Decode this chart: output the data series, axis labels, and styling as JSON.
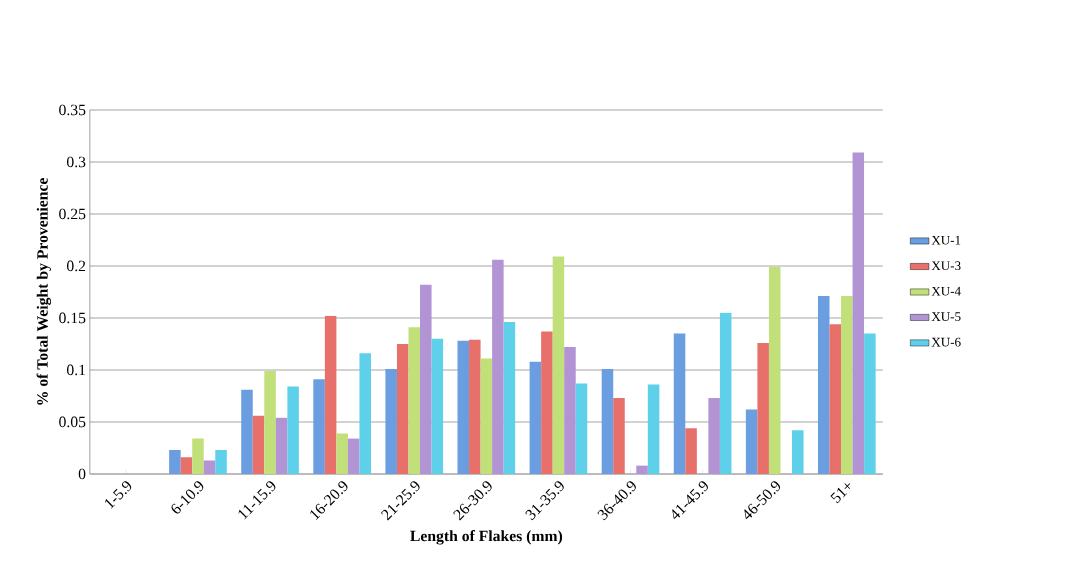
{
  "chart_data": {
    "type": "bar",
    "xlabel": "Length of Flakes (mm)",
    "ylabel": "% of Total Weight by Provenience",
    "categories": [
      "1-5.9",
      "6-10.9",
      "11-15.9",
      "16-20.9",
      "21-25.9",
      "26-30.9",
      "31-35.9",
      "36-40.9",
      "41-45.9",
      "46-50.9",
      "51+"
    ],
    "series": [
      {
        "name": "XU-1",
        "color": "#6a9ee0",
        "values": [
          0,
          0.023,
          0.081,
          0.091,
          0.101,
          0.128,
          0.108,
          0.101,
          0.135,
          0.062,
          0.171
        ]
      },
      {
        "name": "XU-3",
        "color": "#e8706a",
        "values": [
          0,
          0.016,
          0.056,
          0.152,
          0.125,
          0.129,
          0.137,
          0.073,
          0.044,
          0.126,
          0.144
        ]
      },
      {
        "name": "XU-4",
        "color": "#c2e07a",
        "values": [
          0,
          0.034,
          0.099,
          0.039,
          0.141,
          0.111,
          0.209,
          0,
          0,
          0.199,
          0.171
        ]
      },
      {
        "name": "XU-5",
        "color": "#b294d4",
        "values": [
          0,
          0.013,
          0.054,
          0.034,
          0.182,
          0.206,
          0.122,
          0.008,
          0.073,
          0,
          0.309
        ]
      },
      {
        "name": "XU-6",
        "color": "#5fd0ea",
        "values": [
          0,
          0.023,
          0.084,
          0.116,
          0.13,
          0.146,
          0.087,
          0.086,
          0.155,
          0.042,
          0.135
        ]
      }
    ],
    "ylim": [
      0,
      0.35
    ],
    "yticks": [
      0,
      0.05,
      0.1,
      0.15,
      0.2,
      0.25,
      0.3,
      0.35
    ],
    "grid": "y",
    "legend": "right"
  }
}
